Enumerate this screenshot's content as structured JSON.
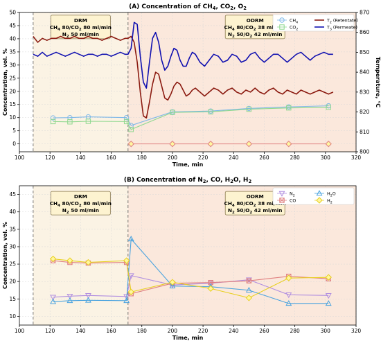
{
  "colors": {
    "ch4": "#7fb8e8",
    "co2": "#8fd88f",
    "t2": "#8b1a10",
    "t3": "#1010b0",
    "n2": "#b08ee0",
    "co": "#e08080",
    "h2o": "#4aa3df",
    "h2": "#e8d020",
    "region_drm": "#fbf3e4",
    "region_odrm": "#fbe8dc"
  },
  "chart_data": [
    {
      "id": "A",
      "type": "line",
      "title_parts": [
        {
          "text": "(A) Concentration of CH",
          "sub": false
        },
        {
          "text": "4",
          "sub": true
        },
        {
          "text": ", CO",
          "sub": false
        },
        {
          "text": "2",
          "sub": true
        },
        {
          "text": ", O",
          "sub": false
        },
        {
          "text": "2",
          "sub": true
        }
      ],
      "xlabel": "Time, min",
      "ylabel": "Concentration, vol. %",
      "y2label": "Temperature, °C",
      "xlim": [
        100,
        320
      ],
      "ylim": [
        -3,
        50
      ],
      "y2lim": [
        800,
        870
      ],
      "xticks": [
        100,
        120,
        140,
        160,
        180,
        200,
        220,
        240,
        260,
        280,
        300,
        320
      ],
      "yticks": [
        0,
        5,
        10,
        15,
        20,
        25,
        30,
        35,
        40,
        45,
        50
      ],
      "y2ticks": [
        800,
        810,
        820,
        830,
        840,
        850,
        860,
        870
      ],
      "vlines": [
        109,
        171
      ],
      "regions": [
        {
          "x0": 109,
          "x1": 171,
          "color_key": "region_drm"
        },
        {
          "x0": 171,
          "x1": 320,
          "color_key": "region_odrm"
        }
      ],
      "annotations": [
        {
          "x": 140,
          "y": 44.5,
          "lines": [
            "DRM",
            "CH4 80/CO2 80 ml/min",
            "N2 50 ml/min"
          ]
        },
        {
          "x": 254,
          "y": 44.5,
          "lines": [
            "ODRM",
            "CH4 80/CO2 38 ml/min",
            "N2 50/O2 42 ml/min"
          ]
        }
      ],
      "legend": [
        {
          "label": "CH4",
          "color_key": "ch4",
          "marker": "circle"
        },
        {
          "label": "CO2",
          "color_key": "co2",
          "marker": "square"
        },
        {
          "label": "T2 (Retentate)",
          "color_key": "t2",
          "marker": "line"
        },
        {
          "label": "T3 (Permeate)",
          "color_key": "t3",
          "marker": "line"
        }
      ],
      "legend_position": "top-right",
      "series": [
        {
          "name": "CH4",
          "color_key": "ch4",
          "marker": "circle",
          "axis": "left",
          "x": [
            122,
            133,
            145,
            170,
            173,
            200,
            225,
            250,
            276,
            302
          ],
          "y": [
            9.9,
            10.0,
            10.3,
            10.0,
            7.0,
            12.2,
            12.5,
            13.5,
            14.1,
            14.5
          ]
        },
        {
          "name": "CO2",
          "color_key": "co2",
          "marker": "square",
          "axis": "left",
          "x": [
            122,
            133,
            145,
            170,
            173,
            200,
            225,
            250,
            276,
            302
          ],
          "y": [
            8.5,
            8.4,
            8.6,
            8.5,
            5.5,
            12.0,
            12.2,
            13.2,
            13.7,
            13.9
          ]
        },
        {
          "name": "O2",
          "color_key": "co",
          "marker": "diamond",
          "axis": "left",
          "x": [
            173,
            200,
            225,
            250,
            276,
            302
          ],
          "y": [
            0,
            0,
            0,
            0,
            0,
            0
          ]
        },
        {
          "name": "T2 (Retentate)",
          "color_key": "t2",
          "marker": "none",
          "axis": "right",
          "x": [
            109,
            112,
            115,
            118,
            121,
            124,
            127,
            130,
            133,
            136,
            139,
            142,
            145,
            148,
            151,
            154,
            157,
            160,
            163,
            166,
            169,
            171,
            173,
            175,
            177,
            179,
            181,
            183,
            185,
            187,
            189,
            191,
            193,
            195,
            197,
            199,
            201,
            203,
            205,
            207,
            209,
            211,
            213,
            215,
            218,
            221,
            224,
            227,
            230,
            233,
            236,
            239,
            242,
            245,
            248,
            251,
            254,
            257,
            260,
            263,
            266,
            269,
            272,
            275,
            278,
            281,
            284,
            287,
            290,
            293,
            296,
            299,
            302,
            305
          ],
          "y": [
            858,
            855,
            857,
            856,
            857,
            857,
            858,
            857,
            857,
            858,
            857,
            857,
            858,
            857,
            857,
            856,
            857,
            858,
            857,
            856,
            857,
            857,
            858,
            855,
            845,
            830,
            818,
            817,
            825,
            834,
            840,
            839,
            833,
            827,
            826,
            829,
            833,
            835,
            834,
            831,
            828,
            829,
            831,
            832,
            830,
            828,
            830,
            832,
            831,
            829,
            831,
            832,
            830,
            829,
            831,
            830,
            832,
            830,
            829,
            831,
            832,
            830,
            829,
            831,
            830,
            829,
            831,
            830,
            829,
            830,
            831,
            830,
            829,
            830
          ]
        },
        {
          "name": "T3 (Permeate)",
          "color_key": "t3",
          "marker": "none",
          "axis": "right",
          "x": [
            109,
            112,
            115,
            118,
            121,
            124,
            127,
            130,
            133,
            136,
            139,
            142,
            145,
            148,
            151,
            154,
            157,
            160,
            163,
            166,
            169,
            171,
            173,
            175,
            177,
            179,
            181,
            183,
            185,
            187,
            189,
            191,
            193,
            195,
            197,
            199,
            201,
            203,
            205,
            207,
            209,
            211,
            213,
            215,
            218,
            221,
            224,
            227,
            230,
            233,
            236,
            239,
            242,
            245,
            248,
            251,
            254,
            257,
            260,
            263,
            266,
            269,
            272,
            275,
            278,
            281,
            284,
            287,
            290,
            293,
            296,
            299,
            302,
            305
          ],
          "y": [
            849,
            848,
            850,
            848,
            849,
            850,
            849,
            848,
            849,
            850,
            849,
            848,
            849,
            849,
            848,
            849,
            849,
            848,
            849,
            850,
            849,
            849,
            852,
            865,
            864,
            848,
            835,
            832,
            845,
            857,
            860,
            855,
            846,
            841,
            843,
            848,
            852,
            851,
            846,
            843,
            843,
            847,
            850,
            849,
            845,
            843,
            846,
            849,
            848,
            845,
            846,
            849,
            848,
            845,
            846,
            849,
            850,
            847,
            845,
            847,
            849,
            849,
            847,
            845,
            847,
            849,
            850,
            848,
            846,
            848,
            849,
            850,
            849,
            849
          ]
        }
      ]
    },
    {
      "id": "B",
      "type": "line",
      "title_parts": [
        {
          "text": "(B) Concentration of N",
          "sub": false
        },
        {
          "text": "2",
          "sub": true
        },
        {
          "text": ", CO, H",
          "sub": false
        },
        {
          "text": "2",
          "sub": true
        },
        {
          "text": "O, H",
          "sub": false
        },
        {
          "text": "2",
          "sub": true
        }
      ],
      "xlabel": "Time, min",
      "ylabel": "Concentration, vol. %",
      "xlim": [
        100,
        320
      ],
      "ylim": [
        7.5,
        47.5
      ],
      "xticks": [
        100,
        120,
        140,
        160,
        180,
        200,
        220,
        240,
        260,
        280,
        300,
        320
      ],
      "yticks": [
        10,
        15,
        20,
        25,
        30,
        35,
        40,
        45
      ],
      "vlines": [
        109,
        171
      ],
      "regions": [
        {
          "x0": 109,
          "x1": 171,
          "color_key": "region_drm"
        },
        {
          "x0": 171,
          "x1": 320,
          "color_key": "region_odrm"
        }
      ],
      "annotations": [
        {
          "x": 140,
          "y": 42.5,
          "lines": [
            "DRM",
            "CH4 80/CO2 80 ml/min",
            "N2 50 ml/min"
          ]
        },
        {
          "x": 254,
          "y": 42.5,
          "lines": [
            "ODRM",
            "CH4 80/CO2 38 ml/min",
            "N2 50/O2 42 ml/min"
          ]
        }
      ],
      "legend": [
        {
          "label": "N2",
          "color_key": "n2",
          "marker": "triangle-down"
        },
        {
          "label": "CO",
          "color_key": "co",
          "marker": "x-square"
        },
        {
          "label": "H2O",
          "color_key": "h2o",
          "marker": "triangle-up"
        },
        {
          "label": "H2",
          "color_key": "h2",
          "marker": "diamond"
        }
      ],
      "legend_position": "top-right",
      "series": [
        {
          "name": "N2",
          "color_key": "n2",
          "marker": "triangle-down",
          "axis": "left",
          "x": [
            122,
            133,
            145,
            170,
            173,
            200,
            225,
            250,
            276,
            302
          ],
          "y": [
            15.5,
            15.8,
            16.0,
            15.7,
            21.7,
            19.0,
            19.5,
            20.5,
            16.2,
            16.0
          ]
        },
        {
          "name": "CO",
          "color_key": "co",
          "marker": "x-square",
          "axis": "left",
          "x": [
            122,
            133,
            145,
            170,
            173,
            200,
            225,
            250,
            276,
            302
          ],
          "y": [
            26.0,
            25.5,
            25.3,
            25.5,
            16.5,
            19.5,
            19.7,
            20.2,
            21.5,
            20.8
          ]
        },
        {
          "name": "H2O",
          "color_key": "h2o",
          "marker": "triangle-up",
          "axis": "left",
          "x": [
            122,
            133,
            145,
            170,
            173,
            200,
            225,
            250,
            276,
            302
          ],
          "y": [
            14.2,
            14.5,
            14.6,
            14.5,
            32.2,
            18.7,
            18.5,
            17.5,
            13.7,
            13.7
          ]
        },
        {
          "name": "H2",
          "color_key": "h2",
          "marker": "diamond",
          "axis": "left",
          "x": [
            122,
            133,
            145,
            170,
            173,
            200,
            225,
            250,
            276,
            302
          ],
          "y": [
            26.5,
            26.0,
            25.5,
            26.0,
            17.0,
            19.8,
            18.0,
            15.3,
            21.0,
            21.2
          ]
        }
      ]
    }
  ]
}
